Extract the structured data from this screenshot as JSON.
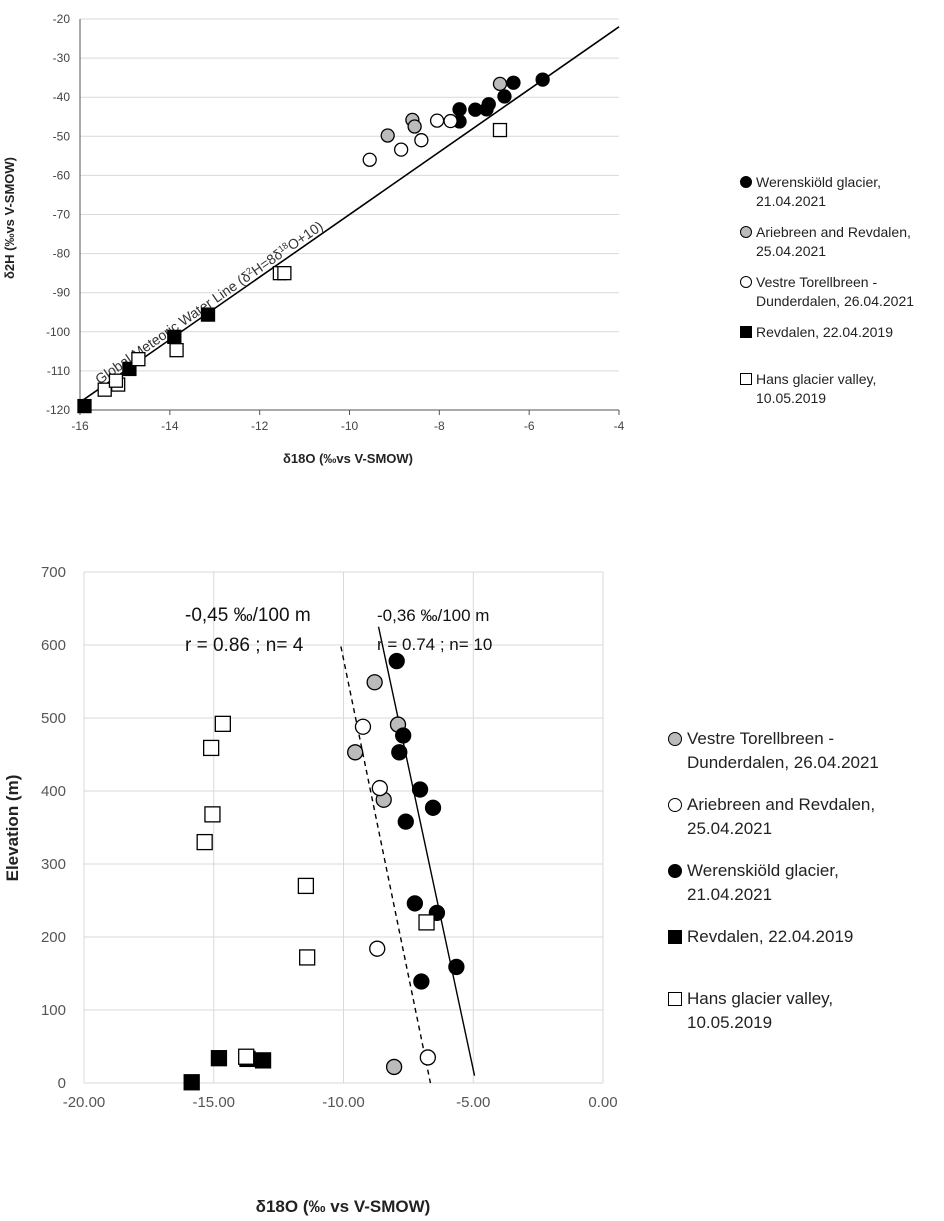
{
  "chart_data": [
    {
      "type": "scatter",
      "title": "",
      "xlabel": "δ18O (‰vs V-SMOW)",
      "ylabel": "δ2H (‰vs V-SMOW)",
      "xlim": [
        -16,
        -4
      ],
      "ylim": [
        -120,
        -20
      ],
      "xticks": [
        -16,
        -14,
        -12,
        -10,
        -8,
        -6,
        -4
      ],
      "yticks": [
        -120,
        -110,
        -100,
        -90,
        -80,
        -70,
        -60,
        -50,
        -40,
        -30,
        -20
      ],
      "grid": "horizontal",
      "legend": "right",
      "line": {
        "label": "Global Meteoric Water Line (δ2H=8δ18O+10)",
        "slope": 8,
        "intercept": 10
      },
      "series": [
        {
          "name": "Werenskiöld glacier,\n21.04.2021",
          "marker": "filled-circle",
          "points": [
            [
              -5.7,
              -35.5
            ],
            [
              -6.35,
              -36.3
            ],
            [
              -6.55,
              -39.8
            ],
            [
              -6.9,
              -41.8
            ],
            [
              -6.95,
              -43.1
            ],
            [
              -7.2,
              -43.2
            ],
            [
              -7.55,
              -43.1
            ],
            [
              -7.55,
              -46.2
            ]
          ]
        },
        {
          "name": "Ariebreen and Revdalen,\n25.04.2021",
          "marker": "grey-circle",
          "points": [
            [
              -6.65,
              -36.6
            ],
            [
              -8.6,
              -45.8
            ],
            [
              -8.55,
              -47.5
            ],
            [
              -9.15,
              -49.8
            ]
          ]
        },
        {
          "name": "Vestre Torellbreen -\nDunderdalen, 26.04.2021",
          "marker": "open-circle",
          "points": [
            [
              -7.75,
              -46.1
            ],
            [
              -8.05,
              -46.0
            ],
            [
              -8.4,
              -51.0
            ],
            [
              -8.85,
              -53.4
            ],
            [
              -9.55,
              -56.0
            ]
          ]
        },
        {
          "name": "Revdalen, 22.04.2019",
          "marker": "filled-square",
          "points": [
            [
              -15.9,
              -119.0
            ],
            [
              -14.9,
              -109.5
            ],
            [
              -13.9,
              -101.3
            ],
            [
              -13.15,
              -95.6
            ]
          ]
        },
        {
          "name": "Hans glacier valley,\n10.05.2019",
          "marker": "open-square",
          "points": [
            [
              -15.45,
              -114.8
            ],
            [
              -15.15,
              -113.5
            ],
            [
              -15.2,
              -112.5
            ],
            [
              -14.7,
              -107.0
            ],
            [
              -13.85,
              -104.7
            ],
            [
              -11.55,
              -85.0
            ],
            [
              -11.45,
              -85.0
            ],
            [
              -6.65,
              -48.4
            ]
          ]
        }
      ]
    },
    {
      "type": "scatter",
      "title": "",
      "xlabel": "δ18O (‰ vs V-SMOW)",
      "ylabel": "Elevation (m)",
      "xlim": [
        -20,
        0
      ],
      "ylim": [
        0,
        700
      ],
      "xticks": [
        "-20.00",
        "-15.00",
        "-10.00",
        "-5.00",
        "0.00"
      ],
      "yticks": [
        0,
        100,
        200,
        300,
        400,
        500,
        600,
        700
      ],
      "grid": "both",
      "legend": "right",
      "annotations": [
        {
          "line1": "-0,45 ‰/100 m",
          "line2": "r = 0.86 ; n= 4"
        },
        {
          "line1": "-0,36 ‰/100 m",
          "line2": "r = 0.74 ; n= 10"
        }
      ],
      "trendlines": [
        {
          "style": "dashed",
          "from": [
            -10.1,
            598
          ],
          "to": [
            -6.65,
            0
          ]
        },
        {
          "style": "solid",
          "from": [
            -8.65,
            625
          ],
          "to": [
            -4.95,
            10
          ]
        }
      ],
      "series": [
        {
          "name": "Vestre Torellbreen -\nDunderdalen, 26.04.2021",
          "marker": "grey-circle",
          "points": [
            [
              -8.8,
              549
            ],
            [
              -7.9,
              491
            ],
            [
              -9.55,
              453
            ],
            [
              -8.45,
              388
            ],
            [
              -8.05,
              22
            ]
          ]
        },
        {
          "name": "Ariebreen and Revdalen,\n25.04.2021",
          "marker": "open-circle",
          "points": [
            [
              -9.25,
              488
            ],
            [
              -8.6,
              404
            ],
            [
              -8.7,
              184
            ],
            [
              -6.75,
              35
            ]
          ]
        },
        {
          "name": "Werenskiöld glacier,\n21.04.2021",
          "marker": "filled-circle",
          "points": [
            [
              -7.95,
              578
            ],
            [
              -7.7,
              476
            ],
            [
              -7.85,
              453
            ],
            [
              -7.05,
              402
            ],
            [
              -6.55,
              377
            ],
            [
              -7.6,
              358
            ],
            [
              -7.25,
              246
            ],
            [
              -6.4,
              233
            ],
            [
              -5.65,
              159
            ],
            [
              -7.0,
              139
            ]
          ]
        },
        {
          "name": "Revdalen, 22.04.2019",
          "marker": "filled-square",
          "points": [
            [
              -14.8,
              34
            ],
            [
              -13.7,
              33
            ],
            [
              -13.1,
              31
            ],
            [
              -15.85,
              1
            ]
          ]
        },
        {
          "name": "Hans glacier valley,\n10.05.2019",
          "marker": "open-square",
          "points": [
            [
              -14.65,
              492
            ],
            [
              -15.1,
              459
            ],
            [
              -15.05,
              368
            ],
            [
              -15.35,
              330
            ],
            [
              -11.45,
              270
            ],
            [
              -11.4,
              172
            ],
            [
              -6.8,
              220
            ],
            [
              -13.75,
              36
            ]
          ]
        }
      ]
    }
  ]
}
